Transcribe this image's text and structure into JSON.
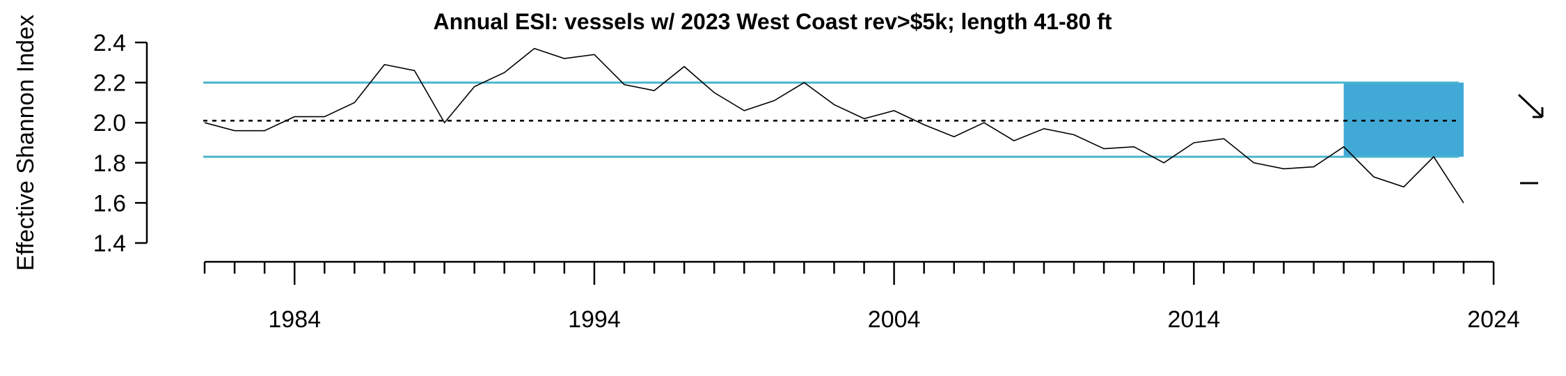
{
  "chart_data": {
    "type": "line",
    "title": "Annual ESI: vessels w/ 2023 West Coast rev>$5k; length 41-80 ft",
    "xlabel": "",
    "ylabel": "Effective Shannon Index",
    "xlim": [
      1981,
      2024
    ],
    "ylim": [
      1.4,
      2.4
    ],
    "y_ticks": [
      "1.4",
      "1.6",
      "1.8",
      "2.0",
      "2.2",
      "2.4"
    ],
    "x_tick_labels": [
      "1984",
      "1994",
      "2004",
      "2014",
      "2024"
    ],
    "grid": false,
    "series": [
      {
        "x": [
          1981,
          1982,
          1983,
          1984,
          1985,
          1986,
          1987,
          1988,
          1989,
          1990,
          1991,
          1992,
          1993,
          1994,
          1995,
          1996,
          1997,
          1998,
          1999,
          2000,
          2001,
          2002,
          2003,
          2004,
          2005,
          2006,
          2007,
          2008,
          2009,
          2010,
          2011,
          2012,
          2013,
          2014,
          2015,
          2016,
          2017,
          2018,
          2019,
          2020,
          2021,
          2022,
          2023
        ],
        "values": [
          2.0,
          1.96,
          1.96,
          2.03,
          2.03,
          2.1,
          2.29,
          2.26,
          2.0,
          2.18,
          2.25,
          2.37,
          2.32,
          2.34,
          2.19,
          2.16,
          2.28,
          2.15,
          2.06,
          2.11,
          2.2,
          2.09,
          2.02,
          2.06,
          1.99,
          1.93,
          2.0,
          1.91,
          1.97,
          1.94,
          1.87,
          1.88,
          1.8,
          1.9,
          1.92,
          1.8,
          1.77,
          1.78,
          1.88,
          1.73,
          1.68,
          1.83,
          1.6
        ]
      }
    ],
    "mean": 2.01,
    "upper_bound": 2.2,
    "lower_bound": 1.83,
    "highlight_x_range": [
      2019,
      2023
    ],
    "trend_symbols": [
      "arrow-down-right",
      "dash"
    ],
    "colors": {
      "band": "#4bb5cf",
      "highlight": "#41a9d6",
      "line": "#000000"
    }
  }
}
